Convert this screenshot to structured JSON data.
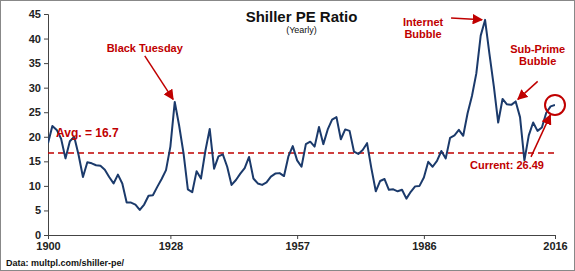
{
  "chart_data": {
    "type": "line",
    "title": "Shiller PE Ratio",
    "subtitle": "(Yearly)",
    "source": "Data: multpl.com/shiller-pe/",
    "x": [
      1900,
      1901,
      1902,
      1903,
      1904,
      1905,
      1906,
      1907,
      1908,
      1909,
      1910,
      1911,
      1912,
      1913,
      1914,
      1915,
      1916,
      1917,
      1918,
      1919,
      1920,
      1921,
      1922,
      1923,
      1924,
      1925,
      1926,
      1927,
      1928,
      1929,
      1930,
      1931,
      1932,
      1933,
      1934,
      1935,
      1936,
      1937,
      1938,
      1939,
      1940,
      1941,
      1942,
      1943,
      1944,
      1945,
      1946,
      1947,
      1948,
      1949,
      1950,
      1951,
      1952,
      1953,
      1954,
      1955,
      1956,
      1957,
      1958,
      1959,
      1960,
      1961,
      1962,
      1963,
      1964,
      1965,
      1966,
      1967,
      1968,
      1969,
      1970,
      1971,
      1972,
      1973,
      1974,
      1975,
      1976,
      1977,
      1978,
      1979,
      1980,
      1981,
      1982,
      1983,
      1984,
      1985,
      1986,
      1987,
      1988,
      1989,
      1990,
      1991,
      1992,
      1993,
      1994,
      1995,
      1996,
      1997,
      1998,
      1999,
      2000,
      2001,
      2002,
      2003,
      2004,
      2005,
      2006,
      2007,
      2008,
      2009,
      2010,
      2011,
      2012,
      2013,
      2014,
      2015,
      2016
    ],
    "series": [
      {
        "name": "Shiller PE Ratio",
        "color": "#1b3a6b",
        "values": [
          18.7,
          22.2,
          21.4,
          19.6,
          15.6,
          19.1,
          20.0,
          16.3,
          11.8,
          14.8,
          14.6,
          14.2,
          14.1,
          13.3,
          11.8,
          10.5,
          12.3,
          10.5,
          6.6,
          6.6,
          6.2,
          5.1,
          6.2,
          8.0,
          8.1,
          9.8,
          11.4,
          13.2,
          18.0,
          27.1,
          22.3,
          16.7,
          9.3,
          8.7,
          13.0,
          11.5,
          17.1,
          21.6,
          13.5,
          16.0,
          16.4,
          13.9,
          10.2,
          11.2,
          12.5,
          13.6,
          15.9,
          11.5,
          10.5,
          10.2,
          10.7,
          11.9,
          12.5,
          12.6,
          12.0,
          16.0,
          18.1,
          15.2,
          13.9,
          18.5,
          19.0,
          18.0,
          22.0,
          18.5,
          21.5,
          23.5,
          24.0,
          19.5,
          21.5,
          21.2,
          17.0,
          16.5,
          17.3,
          18.7,
          13.5,
          8.9,
          11.0,
          11.4,
          9.2,
          9.3,
          8.9,
          9.2,
          7.4,
          8.8,
          9.9,
          10.0,
          11.7,
          14.9,
          13.9,
          15.1,
          17.1,
          15.6,
          19.8,
          20.3,
          21.4,
          20.2,
          24.8,
          28.3,
          32.9,
          40.6,
          43.8,
          36.9,
          30.3,
          22.9,
          27.7,
          26.6,
          26.5,
          27.2,
          24.0,
          15.2,
          20.3,
          22.9,
          21.2,
          21.9,
          24.9,
          26.2,
          26.49
        ]
      }
    ],
    "xlim": [
      1900,
      2016
    ],
    "xticks": [
      1900,
      1928,
      1957,
      1986,
      2016
    ],
    "ylim": [
      0,
      45
    ],
    "yticks": [
      0,
      5,
      10,
      15,
      20,
      25,
      30,
      35,
      40,
      45
    ],
    "grid": false,
    "average": {
      "value": 16.7,
      "label": "Avg. = 16.7",
      "color": "#c00000",
      "line_style": "dashed"
    },
    "annotations": [
      {
        "text": "Black Tuesday",
        "x": 1929
      },
      {
        "text": "Internet Bubble",
        "x": 2000
      },
      {
        "text": "Sub-Prime Bubble",
        "x": 2007
      },
      {
        "text": "Current: 26.49",
        "x": 2016
      }
    ],
    "annotation_color": "#c00000"
  }
}
